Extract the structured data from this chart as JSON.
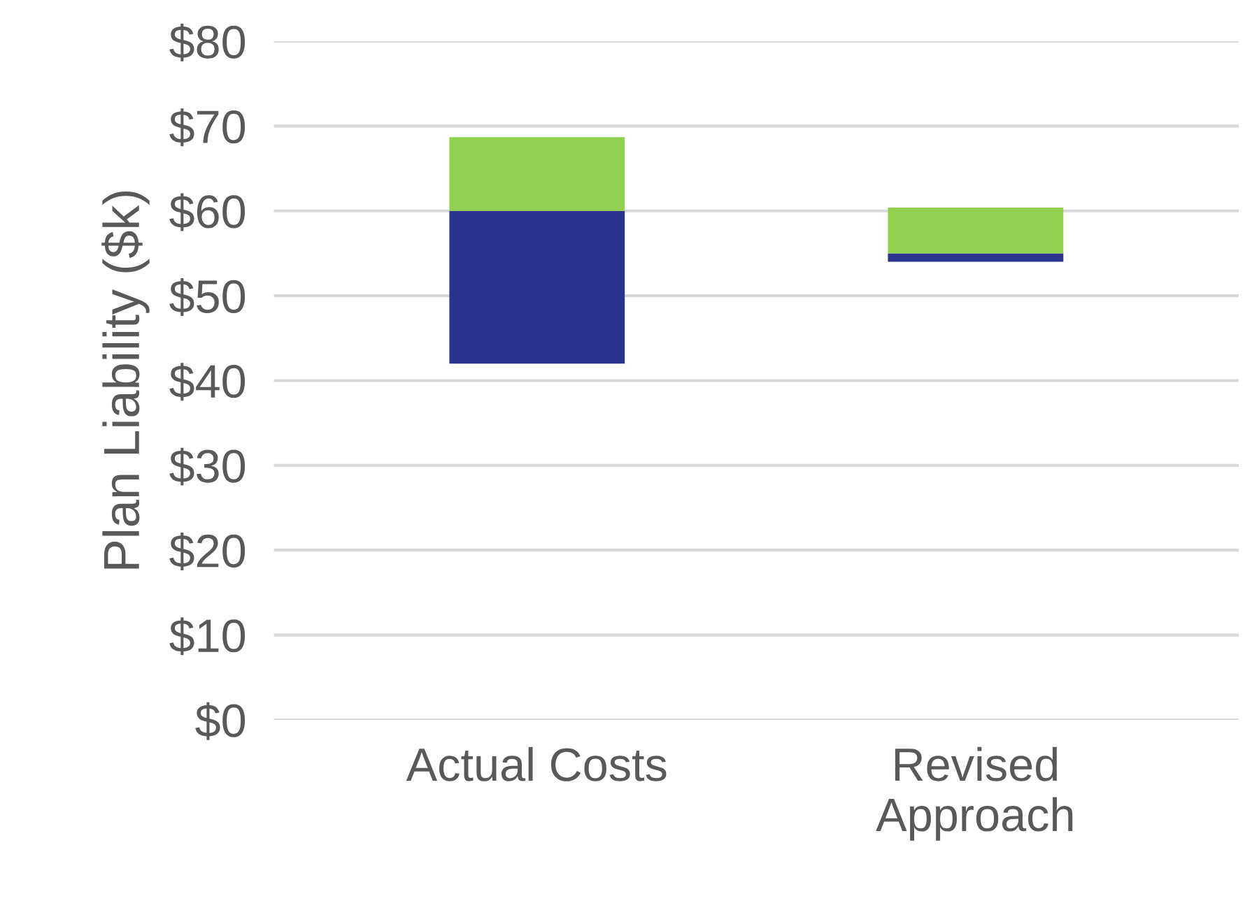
{
  "chart_data": {
    "type": "bar",
    "ylabel": "Plan Liability ($k)",
    "categories": [
      "Actual Costs",
      "Revised\nApproach"
    ],
    "series": [
      {
        "color": "#2b338c",
        "base": [
          42,
          54
        ],
        "values": [
          18,
          1
        ]
      },
      {
        "color": "#92d050",
        "base": [
          60,
          55
        ],
        "values": [
          8.7,
          5.4
        ]
      }
    ],
    "ylim": [
      0,
      80
    ],
    "yticks": [
      {
        "value": 0,
        "label": "$0"
      },
      {
        "value": 10,
        "label": "$10"
      },
      {
        "value": 20,
        "label": "$20"
      },
      {
        "value": 30,
        "label": "$30"
      },
      {
        "value": 40,
        "label": "$40"
      },
      {
        "value": 50,
        "label": "$50"
      },
      {
        "value": 60,
        "label": "$60"
      },
      {
        "value": 70,
        "label": "$70"
      },
      {
        "value": 80,
        "label": "$80"
      }
    ],
    "grid": "y"
  }
}
